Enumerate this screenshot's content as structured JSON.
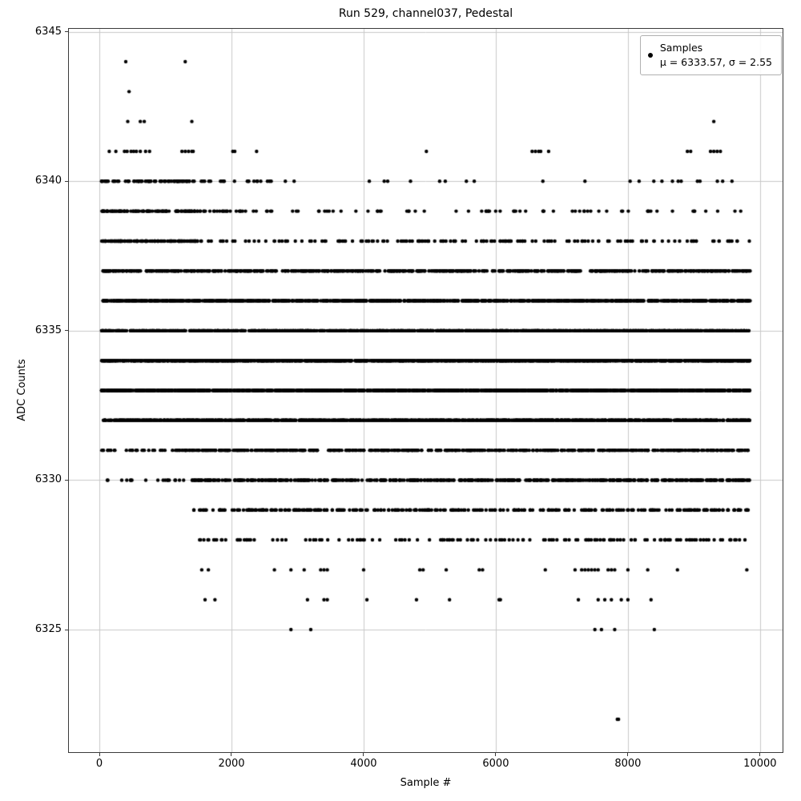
{
  "chart_data": {
    "type": "scatter",
    "title": "Run 529, channel037, Pedestal",
    "xlabel": "Sample #",
    "ylabel": "ADC Counts",
    "xlim": [
      -461,
      10341
    ],
    "ylim": [
      6320.9,
      6345.1
    ],
    "xticks": [
      0,
      2000,
      4000,
      6000,
      8000,
      10000
    ],
    "yticks": [
      6325,
      6330,
      6335,
      6340,
      6345
    ],
    "grid": true,
    "grid_color": "#c8c8c8",
    "marker_color": "#000000",
    "legend": {
      "line1": "Samples",
      "line2": "μ = 6333.57, σ = 2.55"
    },
    "stats": {
      "mu": 6333.57,
      "sigma": 2.55
    },
    "x_range": [
      30,
      9850
    ],
    "bands": [
      {
        "adc": 6344,
        "x": [
          400,
          1300
        ]
      },
      {
        "adc": 6343,
        "x": [
          450
        ]
      },
      {
        "adc": 6342,
        "x": [
          430,
          620,
          680,
          1400,
          9300
        ]
      },
      {
        "adc": 6341,
        "x": [
          150,
          250,
          380,
          420,
          480,
          520,
          560,
          620,
          700,
          760,
          1250,
          1300,
          1350,
          1400,
          1420,
          2020,
          2050,
          2380,
          4950,
          6550,
          6600,
          6650,
          6680,
          6800,
          8900,
          8950,
          9250,
          9300,
          9350,
          9400
        ]
      },
      {
        "adc": 6340,
        "count": 115,
        "segments": [
          [
            30,
            1500,
            0.62
          ],
          [
            1500,
            2600,
            0.14
          ],
          [
            2600,
            9850,
            0.24
          ]
        ]
      },
      {
        "adc": 6339,
        "count": 200,
        "segments": [
          [
            30,
            1500,
            0.55
          ],
          [
            1500,
            2400,
            0.12
          ],
          [
            2400,
            9850,
            0.33
          ]
        ]
      },
      {
        "adc": 6338,
        "count": 300,
        "segments": [
          [
            30,
            1500,
            0.45
          ],
          [
            1500,
            9850,
            0.55
          ]
        ]
      },
      {
        "adc": 6337,
        "count": 640,
        "segments": [
          [
            30,
            9850,
            1
          ]
        ]
      },
      {
        "adc": 6336,
        "count": 980,
        "segments": [
          [
            30,
            9850,
            1
          ]
        ]
      },
      {
        "adc": 6335,
        "count": 1320,
        "segments": [
          [
            30,
            9850,
            1
          ]
        ]
      },
      {
        "adc": 6334,
        "count": 1520,
        "segments": [
          [
            30,
            9850,
            1
          ]
        ]
      },
      {
        "adc": 6333,
        "count": 1510,
        "segments": [
          [
            30,
            9850,
            1
          ]
        ]
      },
      {
        "adc": 6332,
        "count": 1280,
        "segments": [
          [
            30,
            9850,
            1
          ]
        ]
      },
      {
        "adc": 6331,
        "count": 560,
        "segments": [
          [
            30,
            1400,
            0.06
          ],
          [
            1400,
            9850,
            0.94
          ]
        ]
      },
      {
        "adc": 6330,
        "count": 560,
        "segments": [
          [
            100,
            1400,
            0.04
          ],
          [
            1400,
            9850,
            0.96
          ]
        ]
      },
      {
        "adc": 6329,
        "count": 300,
        "segments": [
          [
            1400,
            9850,
            1
          ]
        ]
      },
      {
        "adc": 6328,
        "count": 145,
        "segments": [
          [
            1500,
            9850,
            1
          ]
        ]
      },
      {
        "adc": 6327,
        "x": [
          1550,
          1650,
          2650,
          2900,
          3100,
          3350,
          3400,
          3450,
          4000,
          4850,
          4900,
          5250,
          5750,
          5800,
          6750,
          7200,
          7300,
          7350,
          7400,
          7450,
          7500,
          7550,
          7700,
          7750,
          7800,
          8000,
          8300,
          8750,
          9800
        ]
      },
      {
        "adc": 6326,
        "x": [
          1600,
          1750,
          3150,
          3400,
          3450,
          4050,
          4800,
          5300,
          6050,
          6070,
          7250,
          7550,
          7650,
          7750,
          7900,
          8000,
          8350
        ]
      },
      {
        "adc": 6325,
        "x": [
          2900,
          3200,
          7500,
          7600,
          7800,
          8400
        ]
      },
      {
        "adc": 6322,
        "x": [
          7840,
          7858
        ]
      }
    ]
  }
}
